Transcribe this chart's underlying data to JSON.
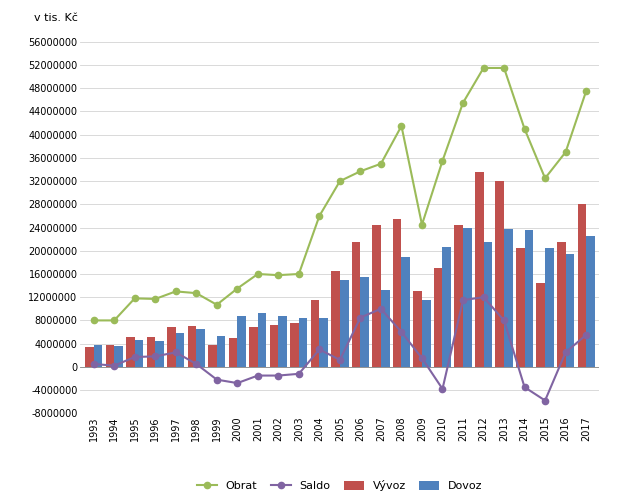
{
  "years": [
    1993,
    1994,
    1995,
    1996,
    1997,
    1998,
    1999,
    2000,
    2001,
    2002,
    2003,
    2004,
    2005,
    2006,
    2007,
    2008,
    2009,
    2010,
    2011,
    2012,
    2013,
    2014,
    2015,
    2016,
    2017
  ],
  "vyvoz": [
    3500000,
    3800000,
    5200000,
    5100000,
    6900000,
    7000000,
    3800000,
    5000000,
    6800000,
    7200000,
    7500000,
    11500000,
    16500000,
    21500000,
    24500000,
    25500000,
    13000000,
    17000000,
    24500000,
    33500000,
    32000000,
    20500000,
    14500000,
    21500000,
    28000000
  ],
  "dovoz": [
    3700000,
    3600000,
    4700000,
    4400000,
    5900000,
    6600000,
    5400000,
    8700000,
    9200000,
    8700000,
    8500000,
    8500000,
    15000000,
    15500000,
    13200000,
    19000000,
    11500000,
    20700000,
    24000000,
    21500000,
    23800000,
    23500000,
    20500000,
    19500000,
    22500000
  ],
  "obrat": [
    8000000,
    8000000,
    11800000,
    11700000,
    13000000,
    12700000,
    10700000,
    13500000,
    16000000,
    15800000,
    16000000,
    26000000,
    32000000,
    33700000,
    35000000,
    41500000,
    24500000,
    35500000,
    45500000,
    51500000,
    51500000,
    41000000,
    32500000,
    37000000,
    47500000
  ],
  "saldo": [
    500000,
    200000,
    1700000,
    1800000,
    2500000,
    500000,
    -2200000,
    -2800000,
    -1500000,
    -1500000,
    -1200000,
    3000000,
    1200000,
    8500000,
    10000000,
    6000000,
    1500000,
    -3800000,
    11500000,
    12000000,
    8000000,
    -3500000,
    -5800000,
    2500000,
    5500000
  ],
  "vyvoz_color": "#C0504D",
  "dovoz_color": "#4F81BD",
  "obrat_color": "#9BBB59",
  "saldo_color": "#8064A2",
  "ylabel": "v tis. Kč",
  "ylim_min": -8000000,
  "ylim_max": 58000000,
  "yticks": [
    -8000000,
    -4000000,
    0,
    4000000,
    8000000,
    12000000,
    16000000,
    20000000,
    24000000,
    28000000,
    32000000,
    36000000,
    40000000,
    44000000,
    48000000,
    52000000,
    56000000
  ],
  "background_color": "#FFFFFF",
  "grid_color": "#D3D3D3",
  "legend_labels": [
    "Vývoz",
    "Dovoz",
    "Obrat",
    "Saldo"
  ]
}
